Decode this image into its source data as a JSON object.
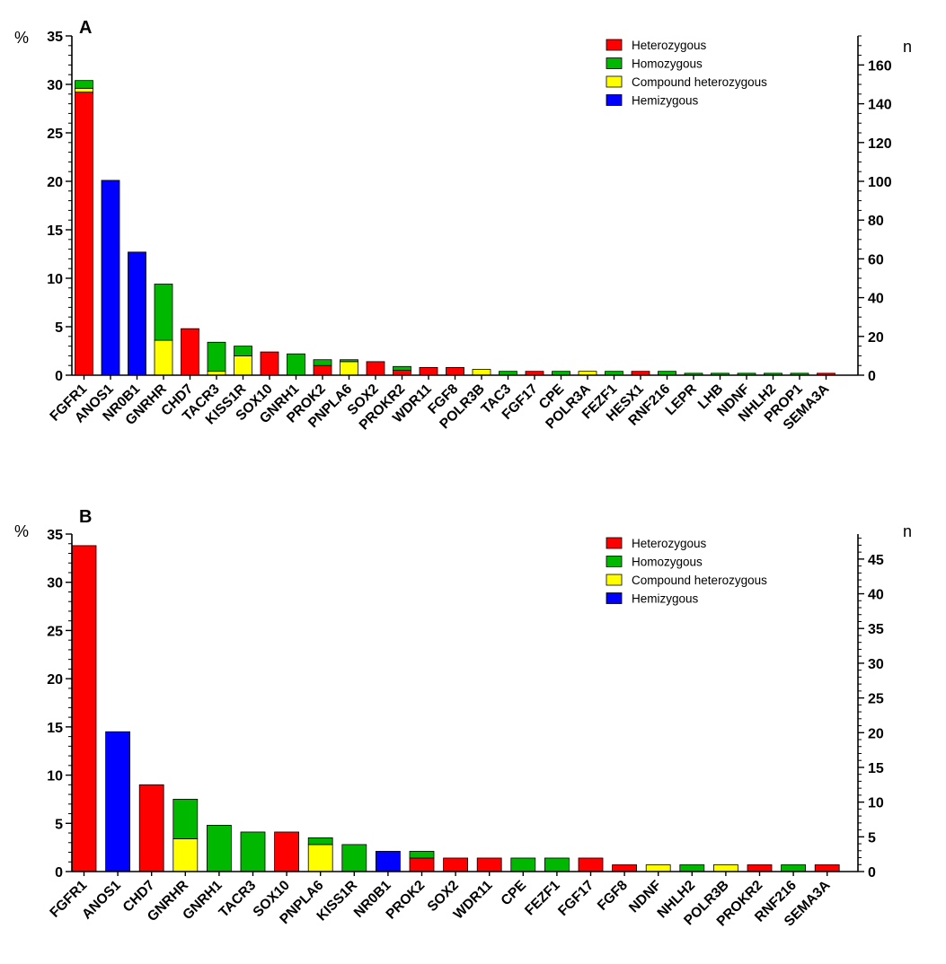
{
  "colors": {
    "Heterozygous": "#ff0000",
    "Homozygous": "#00b800",
    "Compound heterozygous": "#ffff00",
    "Hemizygous": "#0000ff"
  },
  "chart_data": [
    {
      "type": "bar",
      "stacked": true,
      "panel": "A",
      "ylabel_left": "%",
      "ylabel_right": "n",
      "ylim": [
        0,
        35
      ],
      "yticks": [
        0,
        5,
        10,
        15,
        20,
        25,
        30,
        35
      ],
      "ylim_right": [
        0,
        175
      ],
      "yticks_right": [
        0,
        20,
        40,
        60,
        80,
        100,
        120,
        140,
        160
      ],
      "legend": [
        "Heterozygous",
        "Homozygous",
        "Compound heterozygous",
        "Hemizygous"
      ],
      "legend_position": "top-right",
      "categories": [
        "FGFR1",
        "ANOS1",
        "NR0B1",
        "GNRHR",
        "CHD7",
        "TACR3",
        "KISS1R",
        "SOX10",
        "GNRH1",
        "PROK2",
        "PNPLA6",
        "SOX2",
        "PROKR2",
        "WDR11",
        "FGF8",
        "POLR3B",
        "TAC3",
        "FGF17",
        "CPE",
        "POLR3A",
        "FEZF1",
        "HESX1",
        "RNF216",
        "LEPR",
        "LHB",
        "NDNF",
        "NHLH2",
        "PROP1",
        "SEMA3A"
      ],
      "series": [
        {
          "name": "Heterozygous",
          "values": [
            29.2,
            0,
            0,
            0,
            4.8,
            0,
            0,
            2.4,
            0,
            1.0,
            0,
            1.4,
            0.5,
            0.8,
            0.8,
            0,
            0,
            0.4,
            0,
            0,
            0,
            0.4,
            0,
            0,
            0,
            0,
            0,
            0,
            0.2
          ]
        },
        {
          "name": "Compound heterozygous",
          "values": [
            0.4,
            0,
            0,
            3.6,
            0,
            0.4,
            2.0,
            0,
            0,
            0,
            1.4,
            0,
            0,
            0,
            0,
            0.6,
            0,
            0,
            0,
            0.4,
            0,
            0,
            0,
            0,
            0,
            0,
            0,
            0,
            0
          ]
        },
        {
          "name": "Homozygous",
          "values": [
            0.8,
            0,
            0,
            5.8,
            0,
            3.0,
            1.0,
            0,
            2.2,
            0.6,
            0.2,
            0,
            0.4,
            0,
            0,
            0,
            0.4,
            0,
            0.4,
            0,
            0.4,
            0,
            0.4,
            0.2,
            0.2,
            0.2,
            0.2,
            0.2,
            0
          ]
        },
        {
          "name": "Hemizygous",
          "values": [
            0,
            20.1,
            12.7,
            0,
            0,
            0,
            0,
            0,
            0,
            0,
            0,
            0,
            0,
            0,
            0,
            0,
            0,
            0,
            0,
            0,
            0,
            0,
            0,
            0,
            0,
            0,
            0,
            0,
            0
          ]
        }
      ]
    },
    {
      "type": "bar",
      "stacked": true,
      "panel": "B",
      "ylabel_left": "%",
      "ylabel_right": "n",
      "ylim": [
        0,
        35
      ],
      "yticks": [
        0,
        5,
        10,
        15,
        20,
        25,
        30,
        35
      ],
      "ylim_right": [
        0,
        48.6
      ],
      "yticks_right": [
        0,
        5,
        10,
        15,
        20,
        25,
        30,
        35,
        40,
        45
      ],
      "legend": [
        "Heterozygous",
        "Homozygous",
        "Compound heterozygous",
        "Hemizygous"
      ],
      "legend_position": "top-right",
      "categories": [
        "FGFR1",
        "ANOS1",
        "CHD7",
        "GNRHR",
        "GNRH1",
        "TACR3",
        "SOX10",
        "PNPLA6",
        "KISS1R",
        "NR0B1",
        "PROK2",
        "SOX2",
        "WDR11",
        "CPE",
        "FEZF1",
        "FGF17",
        "FGF8",
        "NDNF",
        "NHLH2",
        "POLR3B",
        "PROKR2",
        "RNF216",
        "SEMA3A"
      ],
      "series": [
        {
          "name": "Heterozygous",
          "values": [
            33.8,
            0,
            9.0,
            0,
            0,
            0,
            4.1,
            0,
            0,
            0,
            1.4,
            1.4,
            1.4,
            0,
            0,
            1.4,
            0.7,
            0,
            0,
            0,
            0.7,
            0,
            0.7
          ]
        },
        {
          "name": "Homozygous",
          "values": [
            0,
            0,
            0,
            4.1,
            4.8,
            4.1,
            0,
            0.7,
            2.8,
            0,
            0.7,
            0,
            0,
            1.4,
            1.4,
            0,
            0,
            0,
            0.7,
            0,
            0,
            0.7,
            0
          ]
        },
        {
          "name": "Compound heterozygous",
          "values": [
            0,
            0,
            0,
            3.4,
            0,
            0,
            0,
            2.8,
            0,
            0,
            0,
            0,
            0,
            0,
            0,
            0,
            0,
            0.7,
            0,
            0.7,
            0,
            0,
            0
          ]
        },
        {
          "name": "Hemizygous",
          "values": [
            0,
            14.5,
            0,
            0,
            0,
            0,
            0,
            0,
            0,
            2.1,
            0,
            0,
            0,
            0,
            0,
            0,
            0,
            0,
            0,
            0,
            0,
            0,
            0
          ]
        }
      ]
    }
  ]
}
